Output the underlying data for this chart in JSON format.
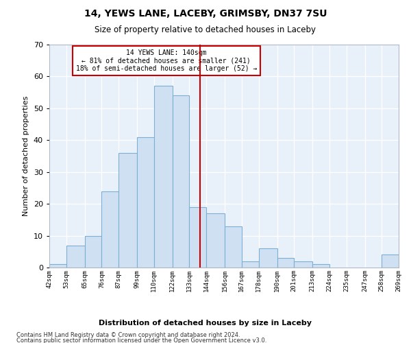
{
  "title1": "14, YEWS LANE, LACEBY, GRIMSBY, DN37 7SU",
  "title2": "Size of property relative to detached houses in Laceby",
  "xlabel": "Distribution of detached houses by size in Laceby",
  "ylabel": "Number of detached properties",
  "bar_color": "#cfe0f3",
  "bar_edge_color": "#7bafd4",
  "background_color": "#e8f0fa",
  "grid_color": "#ffffff",
  "annotation_box_color": "#cc0000",
  "vline_color": "#cc0000",
  "bin_labels": [
    "42sqm",
    "53sqm",
    "65sqm",
    "76sqm",
    "87sqm",
    "99sqm",
    "110sqm",
    "122sqm",
    "133sqm",
    "144sqm",
    "156sqm",
    "167sqm",
    "178sqm",
    "190sqm",
    "201sqm",
    "213sqm",
    "224sqm",
    "235sqm",
    "247sqm",
    "258sqm",
    "269sqm"
  ],
  "bin_edges": [
    42,
    53,
    65,
    76,
    87,
    99,
    110,
    122,
    133,
    144,
    156,
    167,
    178,
    190,
    201,
    213,
    224,
    235,
    247,
    258,
    269
  ],
  "all_heights": [
    1,
    7,
    10,
    24,
    36,
    41,
    57,
    54,
    19,
    17,
    13,
    2,
    6,
    3,
    2,
    1,
    0,
    0,
    0,
    4
  ],
  "vline_x": 140,
  "ylim": [
    0,
    70
  ],
  "yticks": [
    0,
    10,
    20,
    30,
    40,
    50,
    60,
    70
  ],
  "annotation_text": "14 YEWS LANE: 140sqm\n← 81% of detached houses are smaller (241)\n18% of semi-detached houses are larger (52) →",
  "footer1": "Contains HM Land Registry data © Crown copyright and database right 2024.",
  "footer2": "Contains public sector information licensed under the Open Government Licence v3.0.",
  "title1_fontsize": 10,
  "title2_fontsize": 8.5,
  "xlabel_fontsize": 8,
  "ylabel_fontsize": 8,
  "tick_fontsize": 6.5,
  "ytick_fontsize": 8,
  "ann_fontsize": 7,
  "footer_fontsize": 6
}
